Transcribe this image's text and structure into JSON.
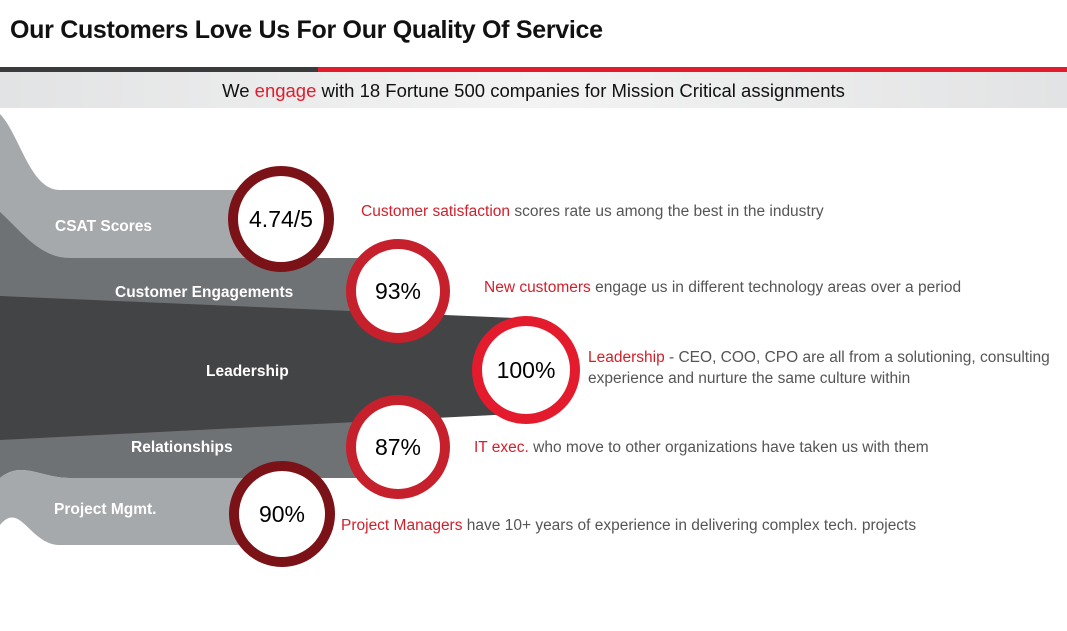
{
  "title": "Our Customers Love Us For Our Quality Of Service",
  "banner": {
    "prefix": "We",
    "highlight": "engage",
    "suffix": "with 18 Fortune 500 companies for Mission Critical assignments"
  },
  "colors": {
    "accent_red": "#e31b2c",
    "dark_red": "#7a1218",
    "band_light": "#a6a9ab",
    "band_mid": "#6f7275",
    "band_dark": "#434446"
  },
  "rows": [
    {
      "label": "CSAT Scores",
      "metric": "4.74/5",
      "highlight": "Customer satisfaction",
      "text": "scores rate us among the best in the industry",
      "text2": ""
    },
    {
      "label": "Customer Engagements",
      "metric": "93%",
      "highlight": "New customers",
      "text": "engage us in different technology areas over a period",
      "text2": ""
    },
    {
      "label": "Leadership",
      "metric": "100%",
      "highlight": "Leadership",
      "text": "- CEO, COO, CPO are all from a solutioning, consulting",
      "text2": "experience and nurture the same culture within"
    },
    {
      "label": "Relationships",
      "metric": "87%",
      "highlight": "IT exec.",
      "text": "who move to other organizations have taken us with them",
      "text2": ""
    },
    {
      "label": "Project Mgmt.",
      "metric": "90%",
      "highlight": "Project Managers",
      "text": "have 10+ years of experience in delivering complex tech. projects",
      "text2": ""
    }
  ]
}
